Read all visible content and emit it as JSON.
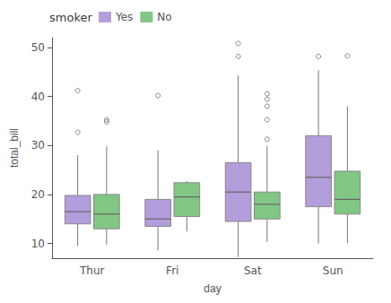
{
  "chart_data": {
    "type": "box",
    "xlabel": "day",
    "ylabel": "total_bill",
    "legend_title": "smoker",
    "categories": [
      "Thur",
      "Fri",
      "Sat",
      "Sun"
    ],
    "series": [
      {
        "name": "Yes",
        "color": "#b39ddb",
        "values": [
          [
            9.5,
            14.0,
            16.5,
            19.8,
            28.0
          ],
          [
            8.58,
            13.5,
            15.0,
            19.0,
            29.0
          ],
          [
            7.25,
            14.5,
            20.5,
            26.5,
            44.3
          ],
          [
            10.0,
            17.5,
            23.5,
            32.0,
            45.35
          ]
        ],
        "fliers": [
          [
            32.68,
            41.19
          ],
          [
            40.17
          ],
          [
            50.81,
            48.17
          ],
          [
            48.17
          ]
        ]
      },
      {
        "name": "No",
        "color": "#81c784",
        "values": [
          [
            9.78,
            13.0,
            16.0,
            20.0,
            29.8
          ],
          [
            12.46,
            15.5,
            19.5,
            22.4,
            22.75
          ],
          [
            10.34,
            15.0,
            18.0,
            20.5,
            29.85
          ],
          [
            10.07,
            16.0,
            19.0,
            24.75,
            38.01
          ]
        ],
        "fliers": [
          [
            34.83,
            35.26
          ],
          [],
          [
            38.01,
            39.42,
            31.27,
            35.26,
            40.55
          ],
          [
            48.27
          ]
        ]
      }
    ],
    "ylim": [
      7,
      52
    ],
    "yticks": [
      10,
      20,
      30,
      40,
      50
    ],
    "grid": false,
    "legend": "upper left"
  }
}
